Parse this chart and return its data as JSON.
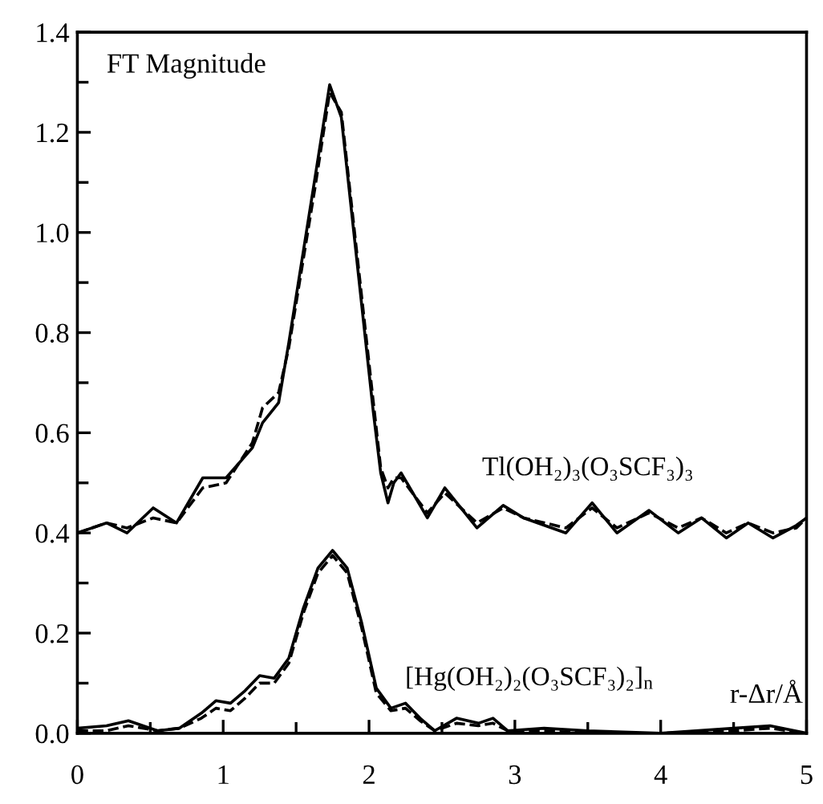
{
  "chart_data": {
    "type": "line",
    "ylabel": "FT Magnitude",
    "xlabel": "r-Δr/Å",
    "xlim": [
      0,
      5
    ],
    "xticks": [
      0,
      1,
      2,
      3,
      4,
      5
    ],
    "ylim": [
      0,
      1.4
    ],
    "yticks": [
      {
        "value": 0,
        "label": "0.0"
      },
      0.2,
      0.4,
      0.6,
      0.8,
      {
        "value": 1,
        "label": "1.0"
      },
      1.2,
      1.4
    ],
    "grid": false,
    "legend": false,
    "marker": "none",
    "annotations": [
      "Tl(OH₂)₃(O₃SCF₃)₃",
      "[Hg(OH₂)₂(O₃SCF₃)₂]$_{n}$"
    ],
    "series": [
      {
        "color": "#000000",
        "line_style": "solid",
        "x": [
          0,
          0.2,
          0.34,
          0.52,
          0.68,
          0.86,
          1.02,
          1.2,
          1.27,
          1.38,
          1.45,
          1.63,
          1.73,
          1.81,
          2.03,
          2.08,
          2.13,
          2.17,
          2.22,
          2.4,
          2.52,
          2.74,
          2.92,
          3.06,
          3.35,
          3.53,
          3.7,
          3.92,
          4.12,
          4.28,
          4.45,
          4.6,
          4.77,
          4.93,
          5
        ],
        "values": [
          0.4,
          0.42,
          0.4,
          0.45,
          0.42,
          0.51,
          0.51,
          0.57,
          0.62,
          0.66,
          0.78,
          1.11,
          1.295,
          1.23,
          0.64,
          0.52,
          0.46,
          0.5,
          0.52,
          0.43,
          0.49,
          0.41,
          0.455,
          0.43,
          0.4,
          0.46,
          0.4,
          0.445,
          0.4,
          0.43,
          0.39,
          0.42,
          0.39,
          0.415,
          0.43
        ]
      },
      {
        "color": "#000000",
        "line_style": "dashed",
        "x": [
          0,
          0.2,
          0.34,
          0.52,
          0.68,
          0.86,
          1.02,
          1.2,
          1.27,
          1.38,
          1.45,
          1.63,
          1.73,
          1.81,
          2.03,
          2.08,
          2.13,
          2.17,
          2.22,
          2.4,
          2.52,
          2.74,
          2.92,
          3.06,
          3.35,
          3.53,
          3.7,
          3.92,
          4.12,
          4.28,
          4.45,
          4.6,
          4.77,
          4.93,
          5
        ],
        "values": [
          0.4,
          0.42,
          0.41,
          0.43,
          0.42,
          0.49,
          0.5,
          0.58,
          0.65,
          0.68,
          0.77,
          1.09,
          1.28,
          1.24,
          0.66,
          0.53,
          0.49,
          0.51,
          0.51,
          0.44,
          0.48,
          0.42,
          0.45,
          0.43,
          0.41,
          0.45,
          0.41,
          0.44,
          0.41,
          0.43,
          0.4,
          0.42,
          0.4,
          0.41,
          0.43
        ]
      },
      {
        "color": "#000000",
        "line_style": "solid",
        "x": [
          0,
          0.2,
          0.35,
          0.55,
          0.7,
          0.85,
          0.95,
          1.05,
          1.15,
          1.25,
          1.35,
          1.45,
          1.55,
          1.65,
          1.75,
          1.85,
          1.95,
          2.05,
          2.15,
          2.25,
          2.35,
          2.45,
          2.6,
          2.75,
          2.85,
          2.95,
          3.2,
          3.5,
          4,
          4.5,
          4.75,
          5
        ],
        "values": [
          0.01,
          0.015,
          0.025,
          0.005,
          0.01,
          0.04,
          0.065,
          0.06,
          0.085,
          0.115,
          0.11,
          0.15,
          0.25,
          0.33,
          0.365,
          0.33,
          0.22,
          0.09,
          0.05,
          0.06,
          0.03,
          0.005,
          0.03,
          0.02,
          0.03,
          0.005,
          0.01,
          0.005,
          0.0,
          0.01,
          0.015,
          0.0
        ]
      },
      {
        "color": "#000000",
        "line_style": "dashed",
        "x": [
          0,
          0.2,
          0.35,
          0.55,
          0.7,
          0.85,
          0.95,
          1.05,
          1.15,
          1.25,
          1.35,
          1.45,
          1.55,
          1.65,
          1.75,
          1.85,
          1.95,
          2.05,
          2.15,
          2.25,
          2.35,
          2.45,
          2.6,
          2.75,
          2.85,
          2.95,
          3.2,
          3.5,
          4,
          4.5,
          4.75,
          5
        ],
        "values": [
          0.005,
          0.005,
          0.015,
          0.005,
          0.01,
          0.03,
          0.05,
          0.045,
          0.07,
          0.1,
          0.1,
          0.14,
          0.24,
          0.32,
          0.355,
          0.32,
          0.21,
          0.08,
          0.045,
          0.05,
          0.025,
          0.005,
          0.02,
          0.015,
          0.02,
          0.005,
          0.005,
          0.0,
          0.0,
          0.005,
          0.01,
          0.0
        ]
      }
    ]
  }
}
